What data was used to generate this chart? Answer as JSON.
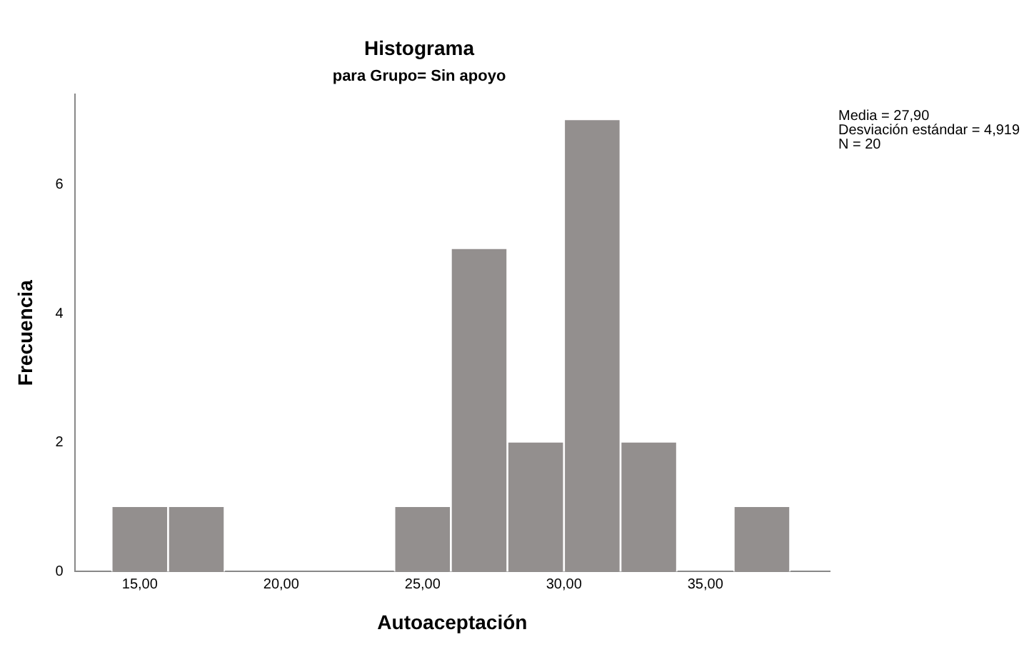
{
  "chart_data": {
    "type": "histogram",
    "title": "Histograma",
    "subtitle": "para Grupo= Sin apoyo",
    "xlabel": "Autoaceptación",
    "ylabel": "Frecuencia",
    "bins": [
      14,
      16,
      18,
      20,
      22,
      24,
      26,
      28,
      30,
      32,
      34,
      36,
      38
    ],
    "values": [
      1,
      1,
      0,
      0,
      0,
      1,
      5,
      2,
      7,
      2,
      0,
      1
    ],
    "color": "#938f8e",
    "xlim": [
      12.7,
      39.4
    ],
    "xticks": [
      {
        "value": 15,
        "label": "15,00"
      },
      {
        "value": 20,
        "label": "20,00"
      },
      {
        "value": 25,
        "label": "25,00"
      },
      {
        "value": 30,
        "label": "30,00"
      },
      {
        "value": 35,
        "label": "35,00"
      }
    ],
    "ylim": [
      0,
      7.4
    ],
    "yticks": [
      0,
      2,
      4,
      6
    ],
    "grid": false,
    "legend": false,
    "annotations": [
      "Media = 27,90",
      "Desviación estándar = 4,919",
      "N = 20"
    ]
  }
}
